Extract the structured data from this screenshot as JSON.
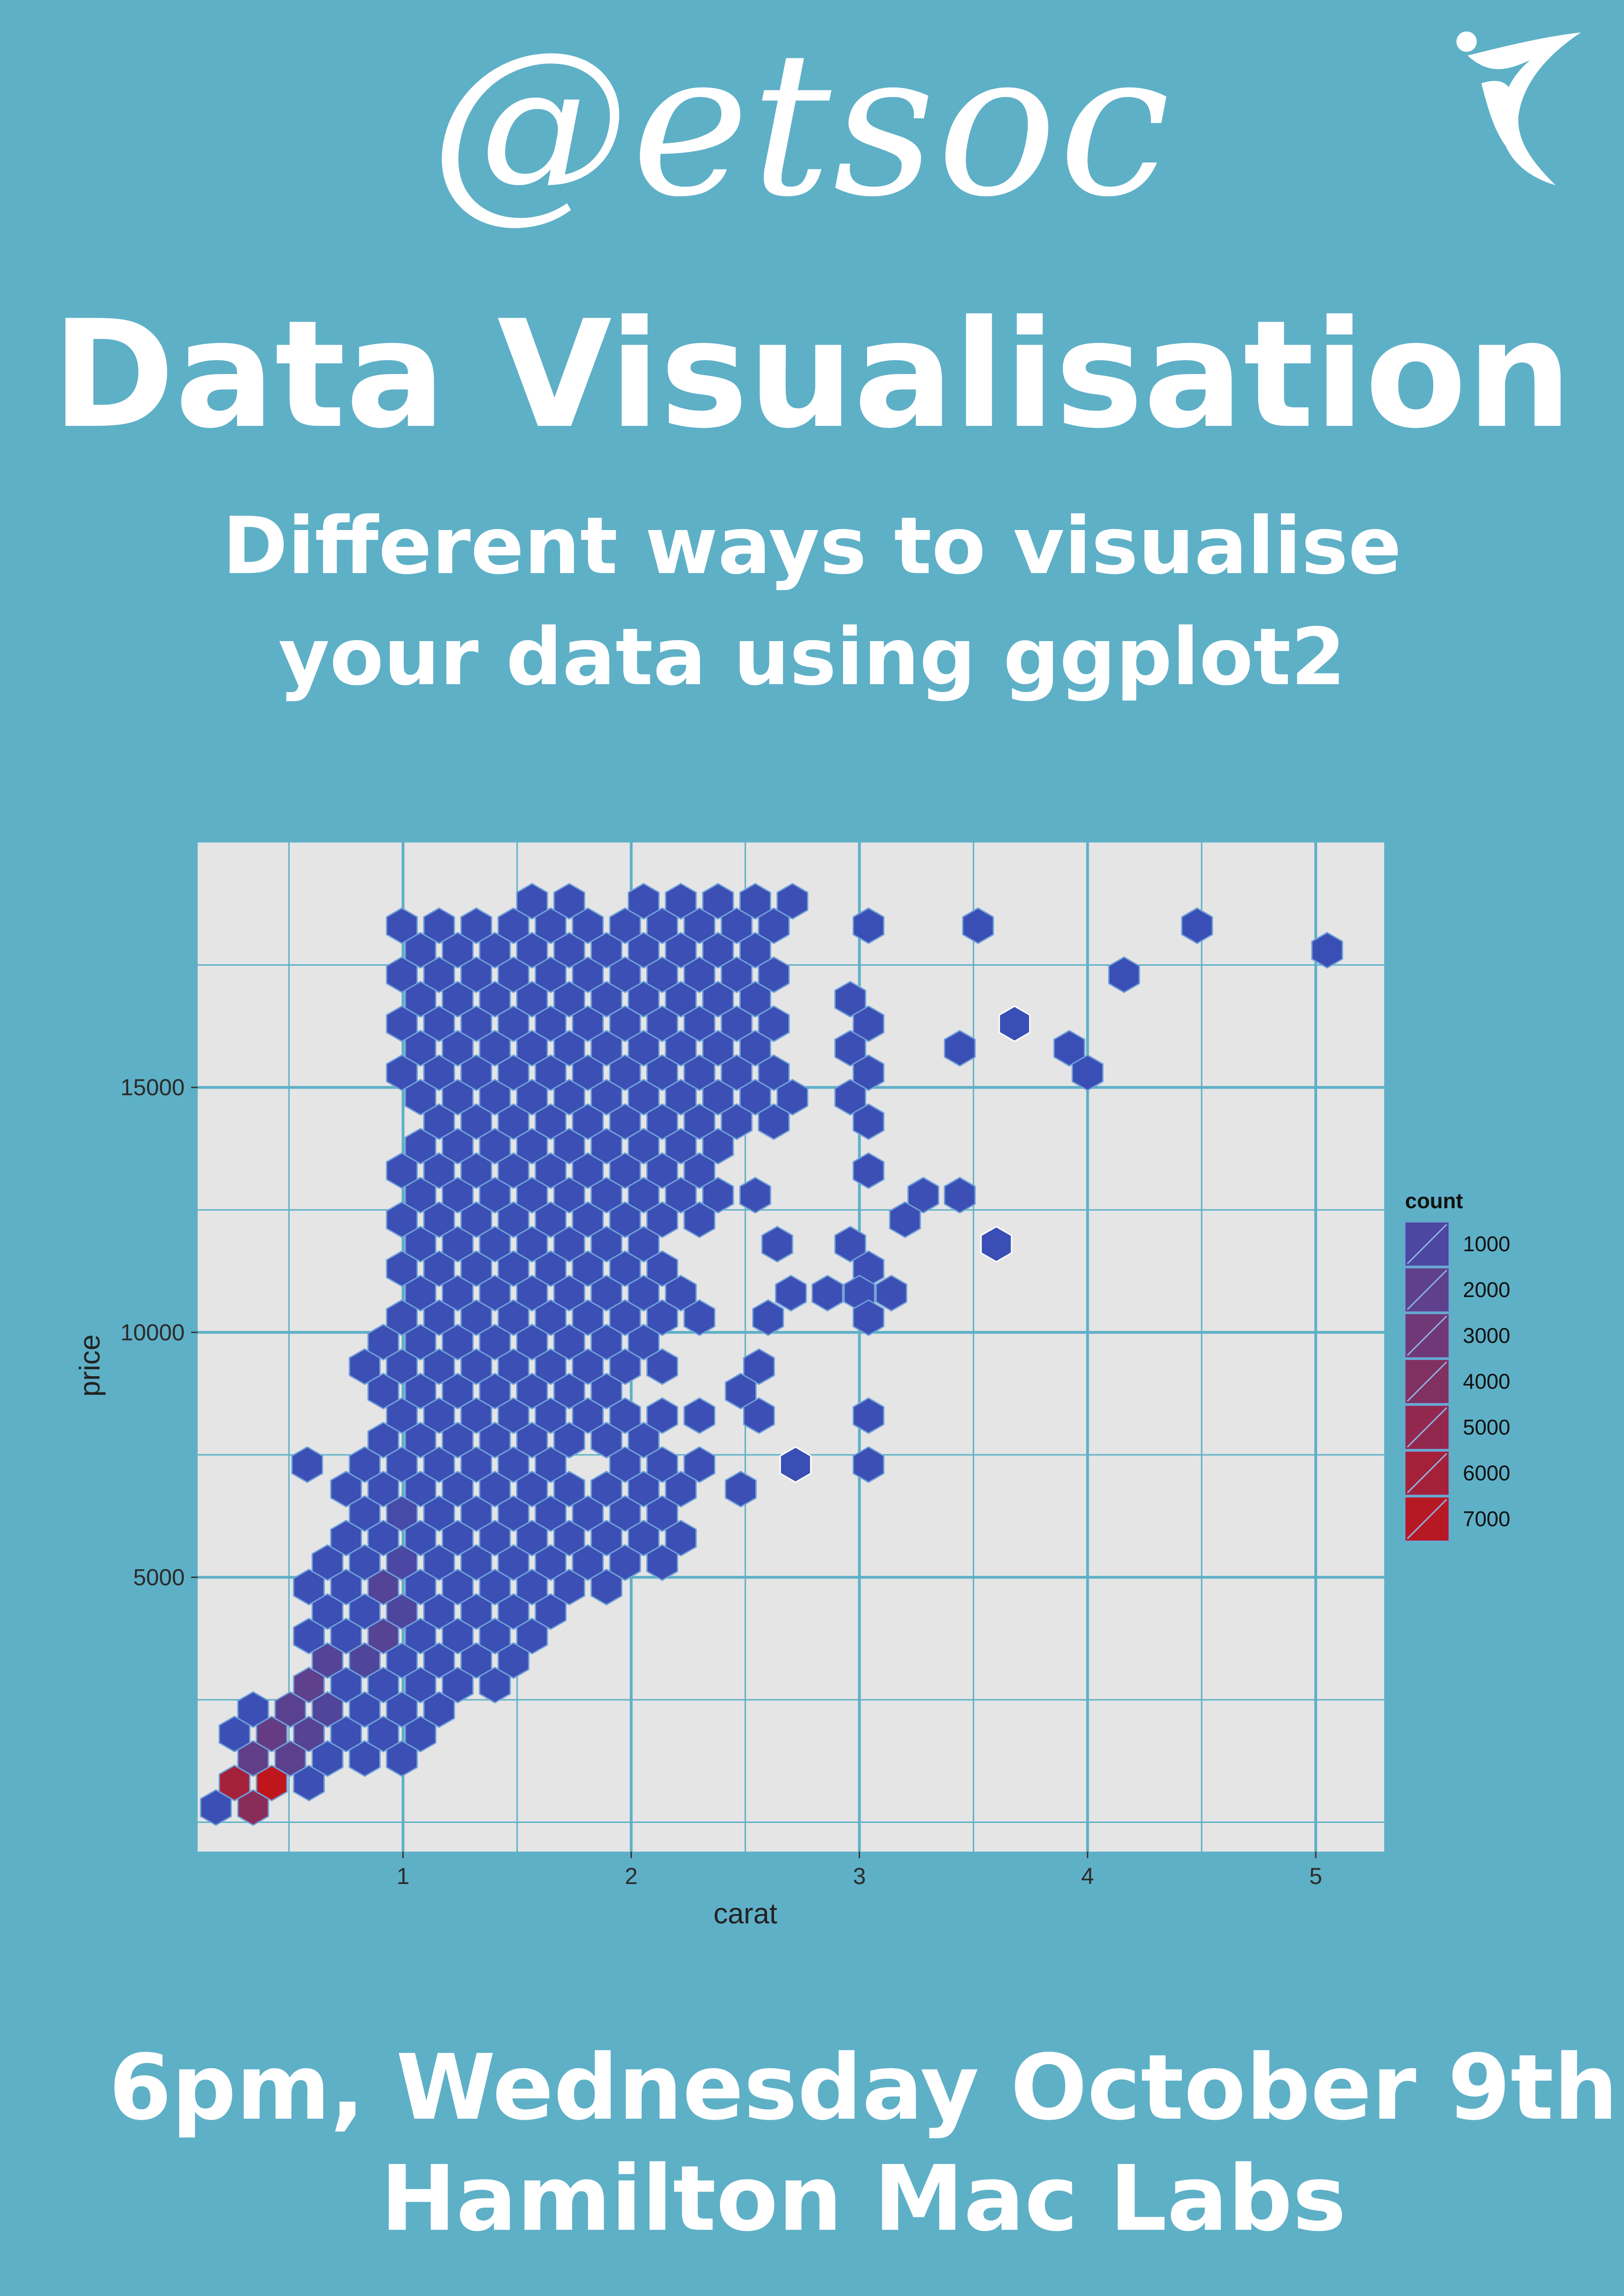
{
  "logo": {
    "text": "@etsoc"
  },
  "headline": {
    "title": "Data Visualisation",
    "subtitle_line1": "Different ways to visualise",
    "subtitle_line2": "your data using ggplot2"
  },
  "event": {
    "when": "6pm, Wednesday October 9th",
    "where": "Hamilton Mac Labs"
  },
  "colors": {
    "background": "#5eb0c7",
    "panel": "#e5e5e5",
    "grid": "#5eb0c7",
    "hex_outline": "#6f9fd8",
    "low": "#3a4fb5",
    "high": "#c0151a"
  },
  "chart_data": {
    "type": "heatmap",
    "geom": "hexbin",
    "title": "",
    "xlabel": "carat",
    "ylabel": "price",
    "xlim": [
      0.1,
      5.3
    ],
    "ylim": [
      -600,
      20000
    ],
    "x_ticks": [
      1,
      2,
      3,
      4,
      5
    ],
    "y_ticks": [
      5000,
      10000,
      15000
    ],
    "x_tick_labels": [
      "1",
      "2",
      "3",
      "4",
      "5"
    ],
    "y_tick_labels": [
      "5000",
      "10000",
      "15000"
    ],
    "grid": true,
    "legend": {
      "title": "count",
      "position": "right",
      "entries": [
        1000,
        2000,
        3000,
        4000,
        5000,
        6000,
        7000
      ],
      "labels": [
        "1000",
        "2000",
        "3000",
        "4000",
        "5000",
        "6000",
        "7000"
      ]
    },
    "hex_grid": {
      "x0": 0.18,
      "dx": 0.163,
      "y0": 300,
      "dy": 1000
    },
    "body_rows": [
      {
        "y": 300,
        "from": 0.18,
        "to": 0.5
      },
      {
        "y": 800,
        "from": 0.26,
        "to": 0.74
      },
      {
        "y": 1300,
        "from": 0.34,
        "to": 1.0
      },
      {
        "y": 1800,
        "from": 0.26,
        "to": 1.14
      },
      {
        "y": 2300,
        "from": 0.34,
        "to": 1.3
      },
      {
        "y": 2800,
        "from": 0.5,
        "to": 1.46
      },
      {
        "y": 3300,
        "from": 0.58,
        "to": 1.55
      },
      {
        "y": 3800,
        "from": 0.5,
        "to": 1.63
      },
      {
        "y": 4300,
        "from": 0.58,
        "to": 1.8
      },
      {
        "y": 4800,
        "from": 0.5,
        "to": 2.04
      },
      {
        "y": 5300,
        "from": 0.66,
        "to": 2.2
      },
      {
        "y": 5800,
        "from": 0.74,
        "to": 2.3
      },
      {
        "y": 6300,
        "from": 0.84,
        "to": 2.2
      },
      {
        "y": 6800,
        "from": 0.66,
        "to": 2.36
      },
      {
        "y": 7300,
        "from": 0.84,
        "to": 2.3
      },
      {
        "y": 7800,
        "from": 0.84,
        "to": 2.1
      },
      {
        "y": 8300,
        "from": 0.9,
        "to": 2.36
      },
      {
        "y": 8800,
        "from": 0.9,
        "to": 2.3
      },
      {
        "y": 9300,
        "from": 0.84,
        "to": 2.2
      },
      {
        "y": 9800,
        "from": 0.9,
        "to": 2.2
      },
      {
        "y": 10300,
        "from": 0.9,
        "to": 2.4
      },
      {
        "y": 10800,
        "from": 0.98,
        "to": 2.3
      },
      {
        "y": 11300,
        "from": 0.98,
        "to": 2.2
      },
      {
        "y": 11800,
        "from": 0.98,
        "to": 2.1
      },
      {
        "y": 12300,
        "from": 0.98,
        "to": 2.36
      },
      {
        "y": 12800,
        "from": 0.98,
        "to": 2.7
      },
      {
        "y": 13300,
        "from": 0.98,
        "to": 2.4
      },
      {
        "y": 13800,
        "from": 1.06,
        "to": 2.5
      },
      {
        "y": 14300,
        "from": 1.06,
        "to": 2.7
      },
      {
        "y": 14800,
        "from": 0.98,
        "to": 2.8
      },
      {
        "y": 15300,
        "from": 0.98,
        "to": 2.7
      },
      {
        "y": 15800,
        "from": 0.98,
        "to": 2.6
      },
      {
        "y": 16300,
        "from": 0.98,
        "to": 2.7
      },
      {
        "y": 16800,
        "from": 0.98,
        "to": 2.6
      },
      {
        "y": 17300,
        "from": 0.98,
        "to": 2.7
      },
      {
        "y": 17800,
        "from": 0.98,
        "to": 2.6
      },
      {
        "y": 18300,
        "from": 0.98,
        "to": 2.7
      },
      {
        "y": 18800,
        "from": 1.5,
        "to": 2.8
      }
    ],
    "body_holes": [
      {
        "x": 1.82,
        "y": 7300
      },
      {
        "x": 2.14,
        "y": 8800
      },
      {
        "x": 2.46,
        "y": 9800
      },
      {
        "x": 2.46,
        "y": 11300
      },
      {
        "x": 1.9,
        "y": 18800
      }
    ],
    "extra_points": [
      {
        "x": 3.04,
        "y": 18300,
        "count": 20
      },
      {
        "x": 3.52,
        "y": 18300,
        "count": 20
      },
      {
        "x": 4.48,
        "y": 18300,
        "count": 20
      },
      {
        "x": 5.05,
        "y": 17800,
        "count": 20
      },
      {
        "x": 4.16,
        "y": 17300,
        "count": 20
      },
      {
        "x": 2.96,
        "y": 16800,
        "count": 50
      },
      {
        "x": 3.04,
        "y": 16300,
        "count": 50
      },
      {
        "x": 3.68,
        "y": 16300,
        "count": 1
      },
      {
        "x": 2.96,
        "y": 15800,
        "count": 50
      },
      {
        "x": 3.44,
        "y": 15800,
        "count": 20
      },
      {
        "x": 3.92,
        "y": 15800,
        "count": 20
      },
      {
        "x": 3.04,
        "y": 15300,
        "count": 50
      },
      {
        "x": 4.0,
        "y": 15300,
        "count": 20
      },
      {
        "x": 2.96,
        "y": 14800,
        "count": 50
      },
      {
        "x": 3.04,
        "y": 14300,
        "count": 50
      },
      {
        "x": 3.04,
        "y": 13300,
        "count": 50
      },
      {
        "x": 3.28,
        "y": 12800,
        "count": 30
      },
      {
        "x": 3.44,
        "y": 12800,
        "count": 30
      },
      {
        "x": 3.2,
        "y": 12300,
        "count": 30
      },
      {
        "x": 2.64,
        "y": 11800,
        "count": 50
      },
      {
        "x": 2.96,
        "y": 11800,
        "count": 50
      },
      {
        "x": 3.6,
        "y": 11800,
        "count": 1
      },
      {
        "x": 3.04,
        "y": 11300,
        "count": 50
      },
      {
        "x": 2.7,
        "y": 10800,
        "count": 50
      },
      {
        "x": 2.86,
        "y": 10800,
        "count": 50
      },
      {
        "x": 3.0,
        "y": 10800,
        "count": 50
      },
      {
        "x": 3.14,
        "y": 10800,
        "count": 50
      },
      {
        "x": 3.04,
        "y": 10300,
        "count": 50
      },
      {
        "x": 2.6,
        "y": 10300,
        "count": 50
      },
      {
        "x": 2.56,
        "y": 9300,
        "count": 50
      },
      {
        "x": 2.48,
        "y": 8800,
        "count": 50
      },
      {
        "x": 2.56,
        "y": 8300,
        "count": 50
      },
      {
        "x": 3.04,
        "y": 8300,
        "count": 50
      },
      {
        "x": 3.04,
        "y": 7300,
        "count": 50
      },
      {
        "x": 2.72,
        "y": 7300,
        "count": 1
      },
      {
        "x": 2.48,
        "y": 6800,
        "count": 50
      },
      {
        "x": 0.58,
        "y": 7300,
        "count": 60
      }
    ],
    "count_points": [
      {
        "x": 0.34,
        "y": 300,
        "count": 4500
      },
      {
        "x": 0.26,
        "y": 800,
        "count": 6000
      },
      {
        "x": 0.42,
        "y": 800,
        "count": 7400
      },
      {
        "x": 0.34,
        "y": 1300,
        "count": 2200
      },
      {
        "x": 0.5,
        "y": 1300,
        "count": 1900
      },
      {
        "x": 0.5,
        "y": 1800,
        "count": 2400
      },
      {
        "x": 0.66,
        "y": 1800,
        "count": 1600
      },
      {
        "x": 0.58,
        "y": 2300,
        "count": 1800
      },
      {
        "x": 0.74,
        "y": 2300,
        "count": 1300
      },
      {
        "x": 0.66,
        "y": 2800,
        "count": 2000
      },
      {
        "x": 0.74,
        "y": 3300,
        "count": 1400
      },
      {
        "x": 0.9,
        "y": 3300,
        "count": 1200
      },
      {
        "x": 0.98,
        "y": 3800,
        "count": 1600
      },
      {
        "x": 1.06,
        "y": 4300,
        "count": 1100
      },
      {
        "x": 1.06,
        "y": 5300,
        "count": 900
      },
      {
        "x": 0.98,
        "y": 4800,
        "count": 1400
      },
      {
        "x": 1.06,
        "y": 6300,
        "count": 700
      }
    ]
  }
}
